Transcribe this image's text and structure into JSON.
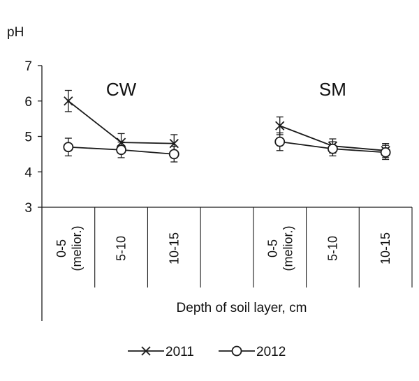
{
  "chart_data": {
    "type": "line",
    "ylabel": "pH",
    "xlabel": "Depth of soil layer, cm",
    "ylim": [
      3,
      7
    ],
    "yticks": [
      3,
      4,
      5,
      6,
      7
    ],
    "groups": [
      {
        "label": "CW",
        "categories": [
          [
            "0-5",
            "(melior.)"
          ],
          [
            "5-10"
          ],
          [
            "10-15"
          ]
        ]
      },
      {
        "label": "SM",
        "categories": [
          [
            "0-5",
            "(melior.)"
          ],
          [
            "5-10"
          ],
          [
            "10-15"
          ]
        ]
      }
    ],
    "series": [
      {
        "name": "2011",
        "marker": "x",
        "groups": [
          {
            "values": [
              6.0,
              4.83,
              4.8
            ],
            "errors": [
              0.3,
              0.25,
              0.25
            ]
          },
          {
            "values": [
              5.3,
              4.73,
              4.6
            ],
            "errors": [
              0.25,
              0.2,
              0.2
            ]
          }
        ]
      },
      {
        "name": "2012",
        "marker": "circle",
        "groups": [
          {
            "values": [
              4.7,
              4.62,
              4.5
            ],
            "errors": [
              0.25,
              0.22,
              0.22
            ]
          },
          {
            "values": [
              4.85,
              4.65,
              4.55
            ],
            "errors": [
              0.25,
              0.2,
              0.2
            ]
          }
        ]
      }
    ],
    "grid": false,
    "legend": "bottom-center"
  }
}
